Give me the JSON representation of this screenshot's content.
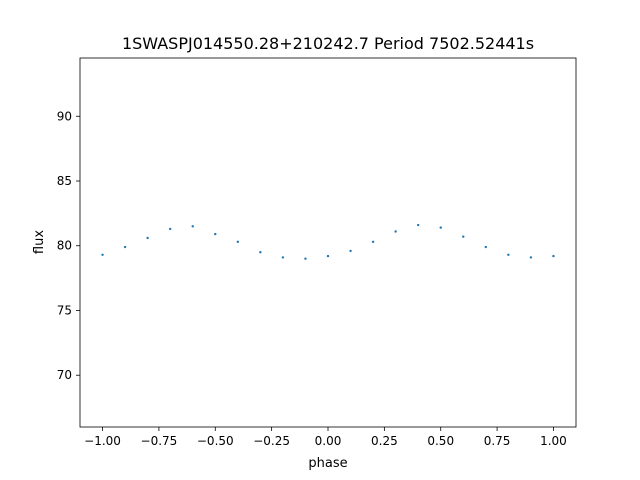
{
  "chart_data": {
    "type": "scatter",
    "title": "1SWASPJ014550.28+210242.7 Period 7502.52441s",
    "xlabel": "phase",
    "ylabel": "flux",
    "xlim": [
      -1.1,
      1.1
    ],
    "ylim": [
      66.0,
      94.5
    ],
    "x_ticks": [
      -1.0,
      -0.75,
      -0.5,
      -0.25,
      0.0,
      0.25,
      0.5,
      0.75,
      1.0
    ],
    "x_tick_labels": [
      "−1.00",
      "−0.75",
      "−0.50",
      "−0.25",
      "0.00",
      "0.25",
      "0.50",
      "0.75",
      "1.00"
    ],
    "y_ticks": [
      70,
      75,
      80,
      85,
      90
    ],
    "y_tick_labels": [
      "70",
      "75",
      "80",
      "85",
      "90"
    ],
    "grid": false,
    "legend": "none",
    "marker_color": "#1f77b4",
    "series": [
      {
        "phase": [
          -1.0,
          -0.9,
          -0.8,
          -0.7,
          -0.6,
          -0.5,
          -0.4,
          -0.3,
          -0.2,
          -0.1,
          0.0,
          0.1,
          0.2,
          0.3,
          0.4,
          0.5,
          0.6,
          0.7,
          0.8,
          0.9,
          1.0
        ],
        "flux": [
          79.3,
          79.9,
          80.6,
          81.3,
          81.5,
          80.9,
          80.3,
          79.5,
          79.1,
          79.0,
          79.2,
          79.6,
          80.3,
          81.1,
          81.6,
          81.4,
          80.7,
          79.9,
          79.3,
          79.1,
          79.2
        ]
      }
    ]
  }
}
